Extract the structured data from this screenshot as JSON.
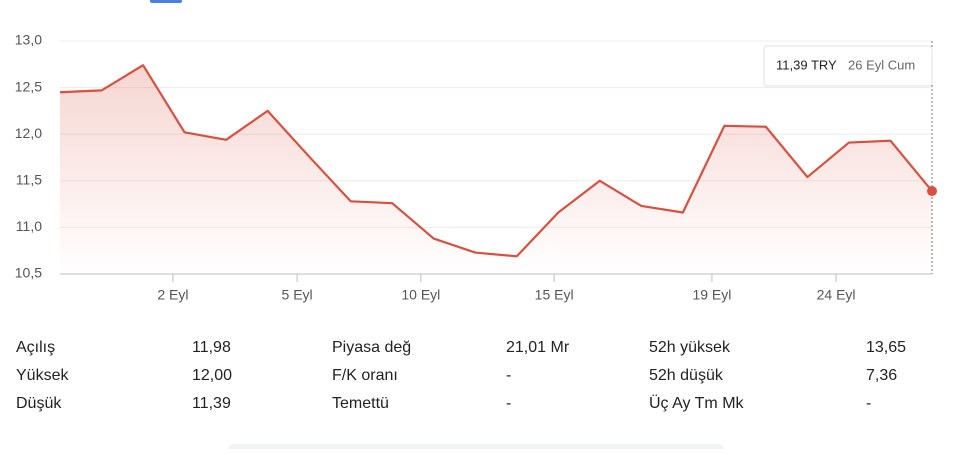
{
  "chart_data": {
    "type": "line",
    "x": [
      0,
      1,
      2,
      3,
      4,
      5,
      6,
      7,
      8,
      9,
      10,
      11,
      12,
      13,
      14,
      15,
      16,
      17,
      18,
      19,
      20,
      21
    ],
    "series": [
      {
        "color": "#d9503f",
        "values": [
          12.45,
          12.47,
          12.74,
          12.02,
          11.94,
          12.25,
          11.76,
          11.28,
          11.26,
          10.88,
          10.73,
          10.69,
          11.16,
          11.5,
          11.23,
          11.16,
          12.09,
          12.08,
          11.54,
          11.91,
          11.93,
          11.39
        ]
      }
    ],
    "xlim": [
      0,
      21
    ],
    "xticks": [
      {
        "value": 2.72,
        "label": "2 Eyl"
      },
      {
        "value": 5.71,
        "label": "5 Eyl"
      },
      {
        "value": 8.69,
        "label": "10 Eyl"
      },
      {
        "value": 11.9,
        "label": "15 Eyl"
      },
      {
        "value": 15.7,
        "label": "19 Eyl"
      },
      {
        "value": 18.69,
        "label": "24 Eyl"
      }
    ],
    "ylim": [
      10.5,
      13.0
    ],
    "yticks": [
      {
        "value": 10.5,
        "label": "10,5"
      },
      {
        "value": 11.0,
        "label": "11,0"
      },
      {
        "value": 11.5,
        "label": "11,5"
      },
      {
        "value": 12.0,
        "label": "12,0"
      },
      {
        "value": 12.5,
        "label": "12,5"
      },
      {
        "value": 13.0,
        "label": "13,0"
      }
    ],
    "grid": true,
    "tooltip": {
      "price": "11,39 TRY",
      "date": "26 Eyl Cum"
    }
  },
  "stats": {
    "columns": [
      [
        [
          "Açılış",
          "11,98"
        ],
        [
          "Yüksek",
          "12,00"
        ],
        [
          "Düşük",
          "11,39"
        ]
      ],
      [
        [
          "Piyasa değ",
          "21,01 Mr"
        ],
        [
          "F/K oranı",
          "-"
        ],
        [
          "Temettü",
          "-"
        ]
      ],
      [
        [
          "52h yüksek",
          "13,65"
        ],
        [
          "52h düşük",
          "7,36"
        ],
        [
          "Üç Ay Tm Mk",
          "-"
        ]
      ]
    ]
  }
}
